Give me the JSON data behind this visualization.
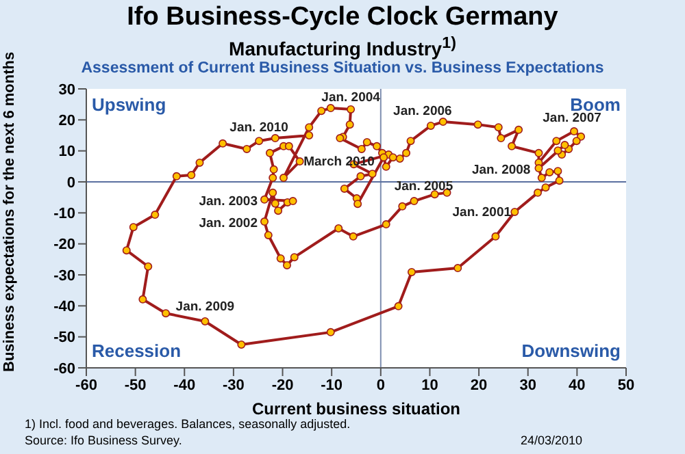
{
  "chart_data": {
    "type": "line",
    "title": "Ifo Business-Cycle Clock Germany",
    "subtitle": "Manufacturing Industry$^{1)}$",
    "xlabel": "Current business situation",
    "ylabel": "Business expectations for the next 6 months",
    "xlim": [
      -60,
      50
    ],
    "xticks": [
      -60,
      -50,
      -40,
      -30,
      -20,
      -10,
      0,
      10,
      20,
      30,
      40,
      50
    ],
    "ylim": [
      -60,
      30
    ],
    "yticks": [
      -60,
      -50,
      -40,
      -30,
      -20,
      -10,
      0,
      10,
      20,
      30
    ],
    "marker": "circle",
    "line_style": "solid",
    "ref_lines": [
      {
        "axis": "x",
        "value": 0,
        "color": "#7f8fb0"
      },
      {
        "axis": "y",
        "value": 0,
        "color": "#5a6fa0"
      }
    ],
    "series": [
      {
        "color": "#a01c1c",
        "x": [
          13.5,
          11,
          6.8,
          4.4,
          1.1,
          -5.6,
          -8.6,
          -17.6,
          -19.1,
          -20.4,
          -22.9,
          -23.7,
          -22,
          -21.5,
          -20.9,
          -19,
          -17.9,
          -23.7,
          -22,
          -21.8,
          -22.6,
          -19.8,
          -18.7,
          -16.5,
          -19.8,
          -14.6,
          -12.1,
          -10.2,
          -6.1,
          -6.3,
          -7.7,
          -8.3,
          -3.9,
          -2.8,
          -0.8,
          0.3,
          1.6,
          -5.5,
          -1.7,
          -4.1,
          -7.4,
          -4.9,
          -4.7,
          0.6,
          1.1,
          2.5,
          3.9,
          5.2,
          6.1,
          10.2,
          12.7,
          19.8,
          24,
          24.5,
          28.1,
          26.7,
          32.2,
          32.2,
          35.8,
          39.4,
          40.8,
          39.9,
          38.3,
          36.9,
          36.1,
          37.5,
          32.2,
          32.8,
          34.4,
          36.1,
          36.4,
          33.6,
          32,
          27.3,
          23.4,
          15.7,
          6.3,
          3.6,
          -10.2,
          -28.4,
          -35.8,
          -43.8,
          -48.5,
          -47.4,
          -51.8,
          -50.4,
          -46,
          -41.6,
          -38.6,
          -36.9,
          -32.2,
          -27.3,
          -24.8,
          -21.5,
          -14.6
        ],
        "values": [
          -3.5,
          -4,
          -6.2,
          -7.9,
          -13.7,
          -17.6,
          -15,
          -24.3,
          -26.9,
          -24.7,
          -17.2,
          -12.8,
          -3.5,
          -7,
          -9.3,
          -6.6,
          -6.2,
          -5.7,
          1.3,
          4,
          9.3,
          11.5,
          11.5,
          6.6,
          1.3,
          17.6,
          22.9,
          23.8,
          23.4,
          18.5,
          14.5,
          14.1,
          10.6,
          12.8,
          11.5,
          9.3,
          8.8,
          5.7,
          2.6,
          1.8,
          -2.2,
          -5.3,
          -7.1,
          7.9,
          4.9,
          7.9,
          7.5,
          9.3,
          13.2,
          18.1,
          19.4,
          18.5,
          17.6,
          14.1,
          16.8,
          11.5,
          9.3,
          6.2,
          13.2,
          16.3,
          14.6,
          13.2,
          10.6,
          8.8,
          10.1,
          11.9,
          4.4,
          1.3,
          3.1,
          3.5,
          0.4,
          -1.8,
          -3.5,
          -9.7,
          -17.6,
          -27.8,
          -29.1,
          -40.1,
          -48.5,
          -52.5,
          -45,
          -42.4,
          -37.9,
          -27.3,
          -22.1,
          -14.6,
          -10.6,
          1.8,
          2.2,
          6.2,
          12.4,
          10.6,
          13.2,
          14.1,
          15
        ]
      }
    ],
    "annotations": [
      "Upswing",
      "Boom",
      "Recession",
      "Downswing",
      "Assessment of Current Business Situation vs. Business Expectations",
      "1) Incl. food and beverages. Balances, seasonally adjusted.",
      "Source: Ifo Business Survey.",
      "24/03/2010",
      {
        "text": "Jan. 2001",
        "x": 13.5,
        "y": -3.5
      },
      {
        "text": "Jan. 2002",
        "x": -23.7,
        "y": -12.8
      },
      {
        "text": "Jan. 2003",
        "x": -23.7,
        "y": -5.7
      },
      {
        "text": "Jan. 2004",
        "x": -6.1,
        "y": 23.4
      },
      {
        "text": "Jan. 2005",
        "x": 1.1,
        "y": 4.9
      },
      {
        "text": "Jan. 2006",
        "x": 10.2,
        "y": 18.1
      },
      {
        "text": "Jan. 2007",
        "x": 35.8,
        "y": 13.2
      },
      {
        "text": "Jan. 2008",
        "x": 32.2,
        "y": 4.4
      },
      {
        "text": "Jan. 2009",
        "x": -35.8,
        "y": -45
      },
      {
        "text": "Jan. 2010",
        "x": -24.8,
        "y": 13.2
      },
      {
        "text": "March 2010",
        "x": -14.6,
        "y": 15
      }
    ]
  }
}
